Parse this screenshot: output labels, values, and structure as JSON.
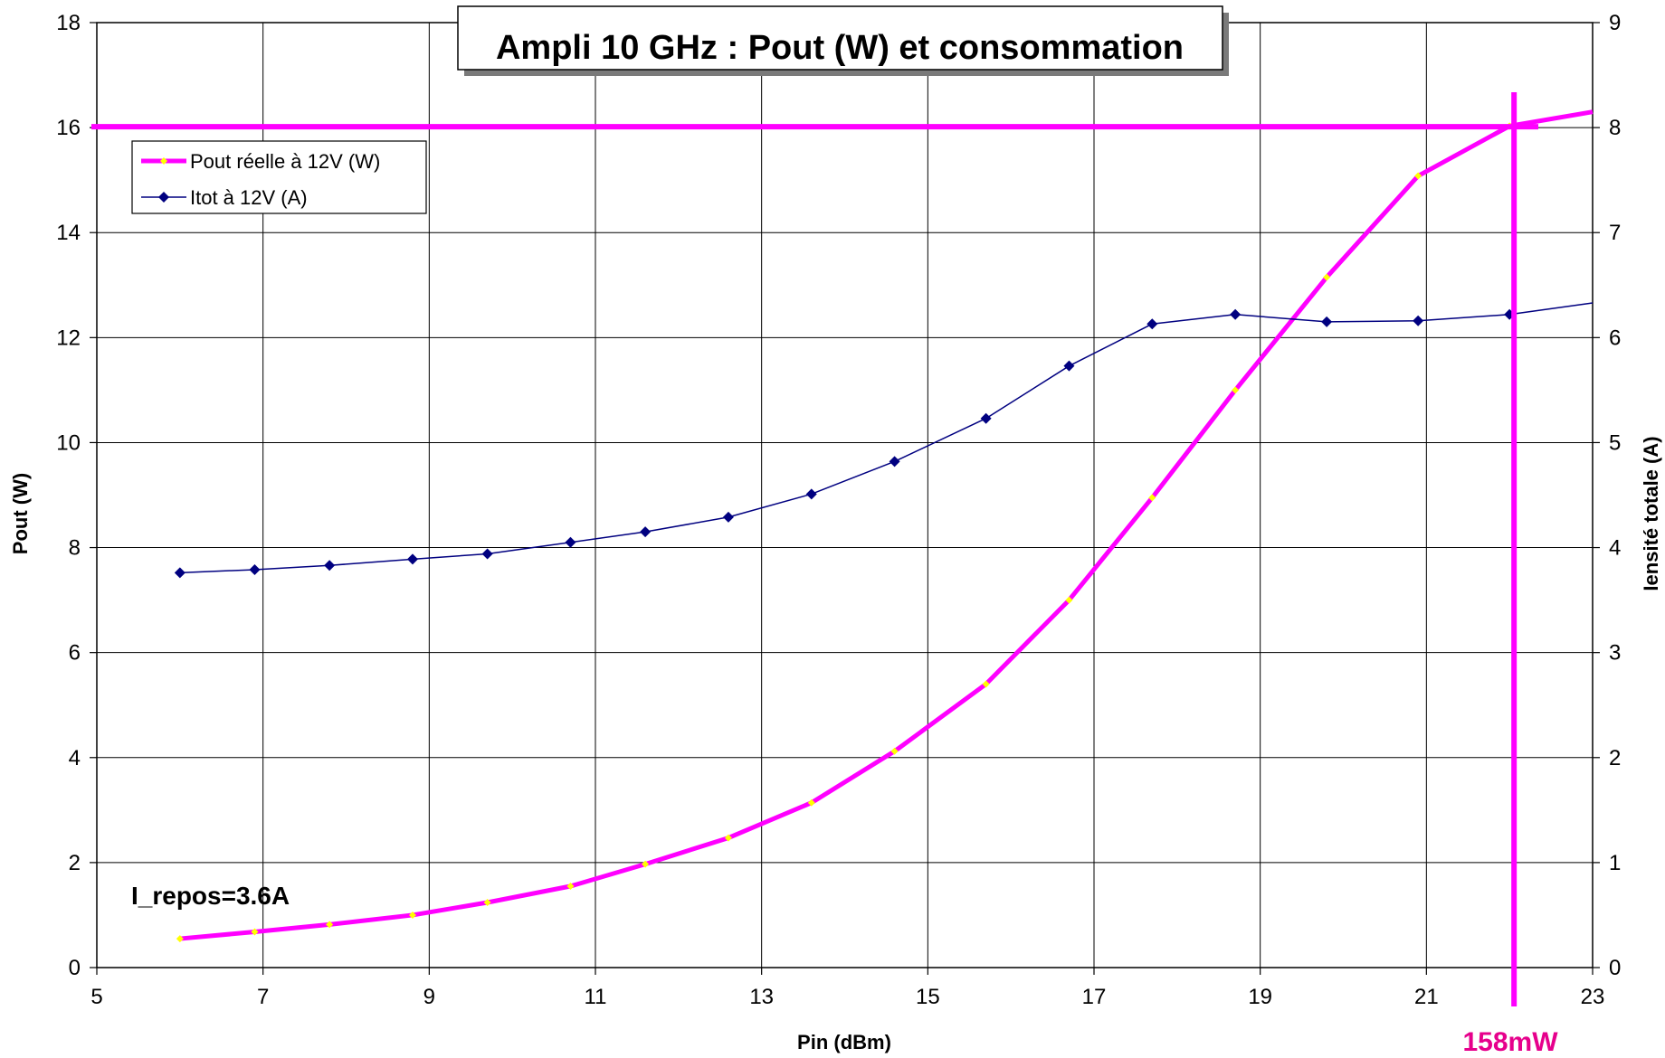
{
  "chart_data": {
    "type": "line",
    "title": "Ampli 10 GHz : Pout (W) et consommation",
    "xlabel": "Pin (dBm)",
    "ylabel": "Pout (W)",
    "y2label": "Iensité totale (A)",
    "xlim": [
      5,
      23
    ],
    "ylim": [
      0,
      18
    ],
    "y2lim": [
      0,
      9
    ],
    "xticks": [
      5,
      7,
      9,
      11,
      13,
      15,
      17,
      19,
      21,
      23
    ],
    "yticks": [
      0,
      2,
      4,
      6,
      8,
      10,
      12,
      14,
      16,
      18
    ],
    "y2ticks": [
      0,
      1,
      2,
      3,
      4,
      5,
      6,
      7,
      8,
      9
    ],
    "grid": true,
    "legend_position": "top-left",
    "series": [
      {
        "name": "Pout réelle à 12V (W)",
        "axis": "left",
        "color": "#ff00ff",
        "marker_color": "#ffff00",
        "x": [
          6.0,
          6.9,
          7.8,
          8.8,
          9.7,
          10.7,
          11.6,
          12.6,
          13.6,
          14.6,
          15.7,
          16.7,
          17.7,
          18.7,
          19.8,
          20.9,
          22.0,
          23.0
        ],
        "y": [
          0.55,
          0.68,
          0.82,
          1.0,
          1.24,
          1.55,
          1.97,
          2.47,
          3.14,
          4.12,
          5.4,
          7.0,
          8.95,
          11.0,
          13.15,
          15.08,
          16.03,
          16.3
        ]
      },
      {
        "name": "Itot à 12V (A)",
        "axis": "right",
        "color": "#000080",
        "x": [
          6.0,
          6.9,
          7.8,
          8.8,
          9.7,
          10.7,
          11.6,
          12.6,
          13.6,
          14.6,
          15.7,
          16.7,
          17.7,
          18.7,
          19.8,
          20.9,
          22.0,
          23.0
        ],
        "y": [
          3.76,
          3.79,
          3.83,
          3.89,
          3.94,
          4.05,
          4.15,
          4.29,
          4.51,
          4.82,
          5.23,
          5.73,
          6.13,
          6.22,
          6.15,
          6.16,
          6.22,
          6.33
        ]
      }
    ],
    "reference_lines": {
      "horizontal_y": 16.0,
      "vertical_x": 22.0,
      "color": "#ff00ff"
    },
    "annotations": {
      "idle_current": "I_repos=3.6A",
      "marker_label": "158mW"
    }
  }
}
